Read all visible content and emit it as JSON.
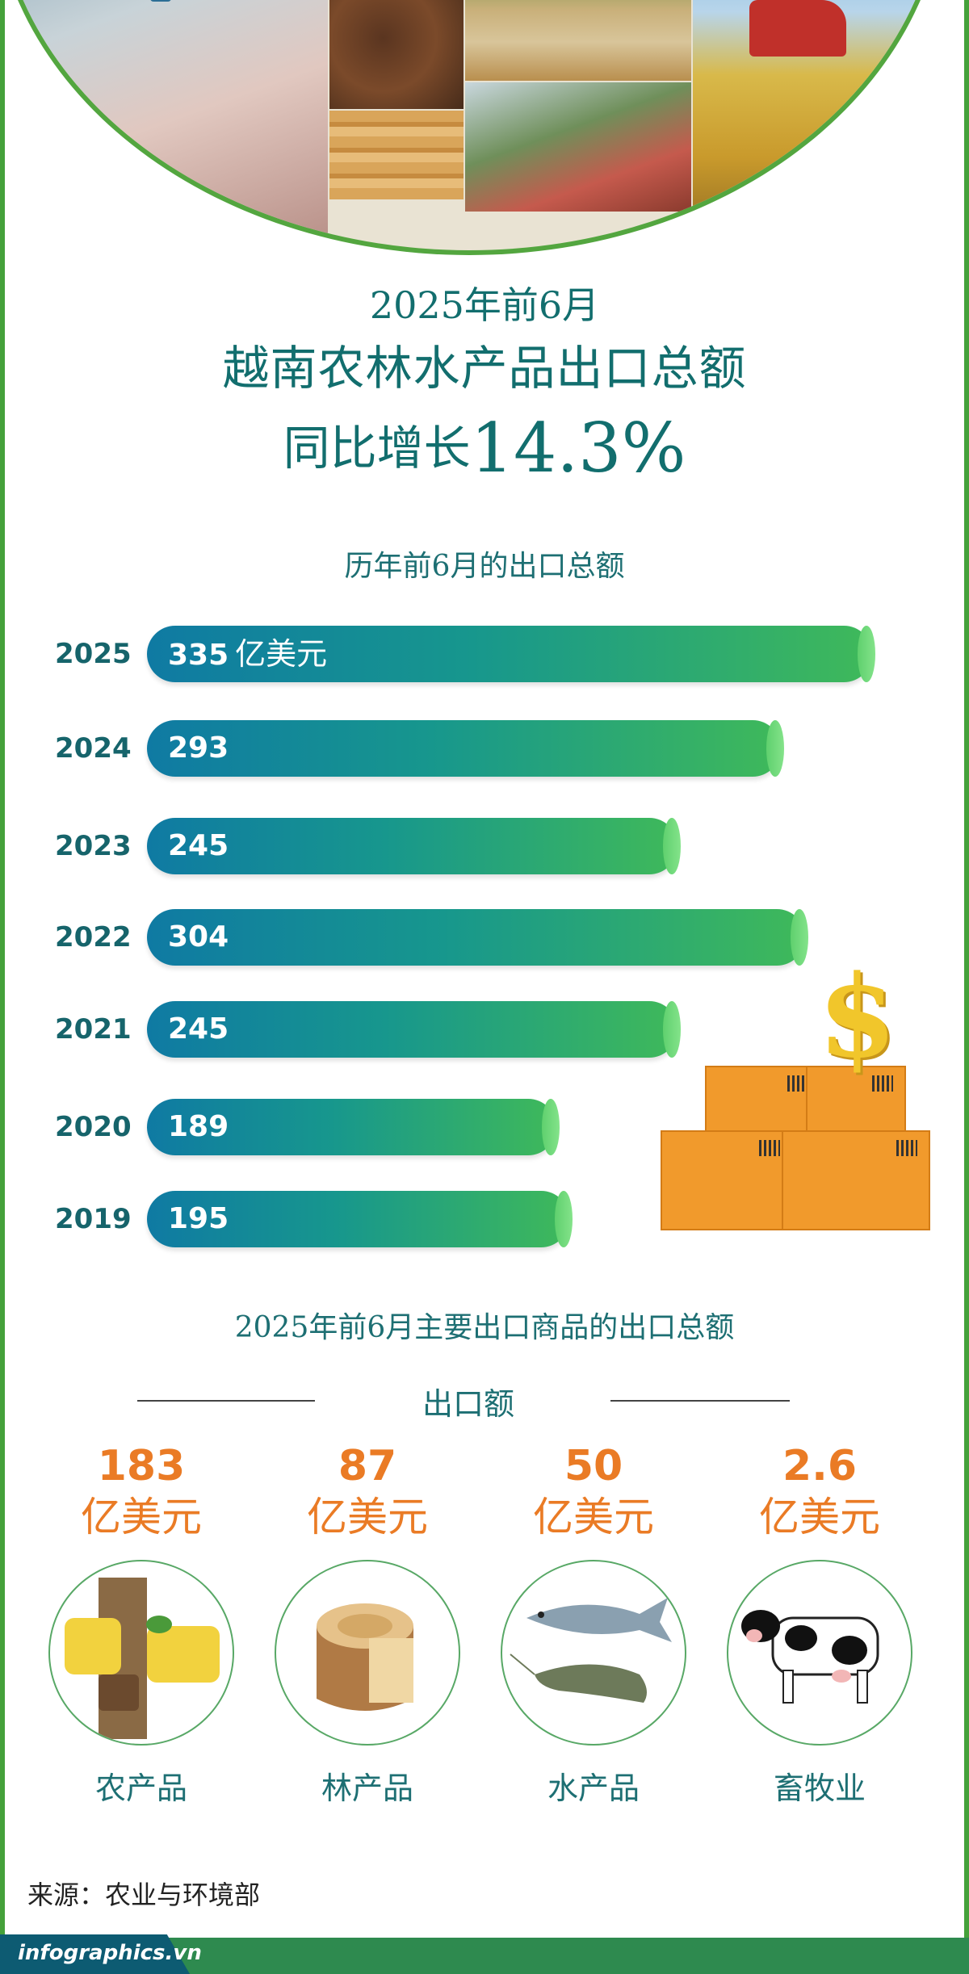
{
  "header": {
    "subtitle": "2025年前6月",
    "title": "越南农林水产品出口总额",
    "growth_text": "同比增长",
    "growth_value": "14.3%"
  },
  "chart_data": {
    "type": "bar",
    "orientation": "horizontal",
    "title": "历年前6月的出口总额",
    "unit": "亿美元",
    "categories": [
      "2025",
      "2024",
      "2023",
      "2022",
      "2021",
      "2020",
      "2019"
    ],
    "values": [
      335,
      293,
      245,
      304,
      245,
      189,
      195
    ],
    "value_labels": [
      "335",
      "293",
      "245",
      "304",
      "245",
      "189",
      "195"
    ],
    "colors": {
      "bar_start": "#0f7aa3",
      "bar_end": "#3fb95a",
      "label": "#16646b"
    }
  },
  "products_section": {
    "title": "2025年前6月主要出口商品的出口总额",
    "subtitle": "出口额",
    "items": [
      {
        "value": "183",
        "unit": "亿美元",
        "name": "农产品",
        "icon": "rubber-tree-icon"
      },
      {
        "value": "87",
        "unit": "亿美元",
        "name": "林产品",
        "icon": "wood-log-icon"
      },
      {
        "value": "50",
        "unit": "亿美元",
        "name": "水产品",
        "icon": "fish-shrimp-icon"
      },
      {
        "value": "2.6",
        "unit": "亿美元",
        "name": "畜牧业",
        "icon": "cow-icon"
      }
    ]
  },
  "source": "来源：农业与环境部",
  "brand": "infographics.vn",
  "colors": {
    "frame": "#45a13a",
    "title": "#126e6e",
    "accent": "#ea7b25"
  }
}
